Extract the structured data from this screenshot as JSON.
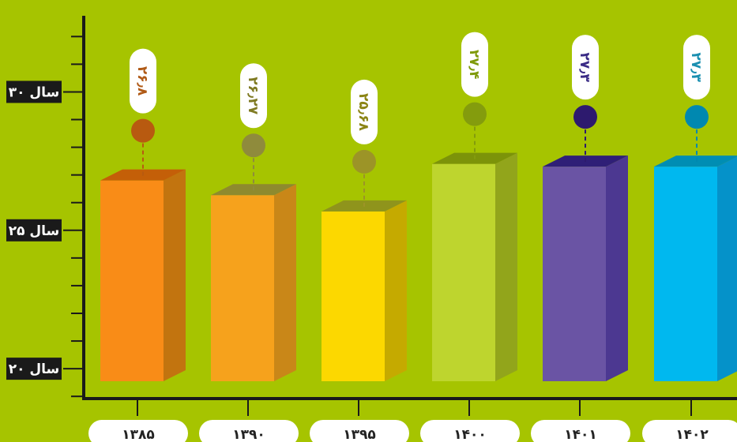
{
  "chart_data": {
    "type": "bar",
    "title": "",
    "xlabel": "",
    "ylabel": "",
    "categories": [
      "۱۳۸۵",
      "۱۳۹۰",
      "۱۳۹۵",
      "۱۴۰۰",
      "۱۴۰۱",
      "۱۴۰۲"
    ],
    "values": [
      26.8,
      26.27,
      25.68,
      27.4,
      27.3,
      27.3
    ],
    "value_labels": [
      "۲۶٫۸",
      "۲۶٫۲۷",
      "۲۵٫۶۸",
      "۲۷٫۴",
      "۲۷٫۳",
      "۲۷٫۳"
    ],
    "y_ticks": [
      {
        "value": 20,
        "label": "۲۰ سال"
      },
      {
        "value": 25,
        "label": "۲۵ سال"
      },
      {
        "value": 30,
        "label": "۳۰ سال"
      }
    ],
    "ylim": [
      18.92,
      32.75
    ],
    "minor_tick_step": 1,
    "grid": false,
    "legend": "none",
    "colors": {
      "background": "#a6c400",
      "axis": "#1a1a1a",
      "bars": [
        {
          "front": "#f98c17",
          "side": "#c2740f",
          "top": "#c45f08",
          "dot": "#b85a10",
          "text": "#b05a16"
        },
        {
          "front": "#f6a21c",
          "side": "#c98718",
          "top": "#8e8a2e",
          "dot": "#8f8b3c",
          "text": "#7f7a22"
        },
        {
          "front": "#fcd800",
          "side": "#c5aa00",
          "top": "#8f941c",
          "dot": "#9c9427",
          "text": "#8b8414"
        },
        {
          "front": "#bed52e",
          "side": "#92a51b",
          "top": "#7c9309",
          "dot": "#849c0d",
          "text": "#7f9a0b"
        },
        {
          "front": "#6a54a4",
          "side": "#4c3891",
          "top": "#2f1f77",
          "dot": "#2d1a6e",
          "text": "#3a2b85"
        },
        {
          "front": "#00b8ef",
          "side": "#0592c9",
          "top": "#008db3",
          "dot": "#0088b0",
          "text": "#1a8fb0"
        }
      ]
    }
  }
}
